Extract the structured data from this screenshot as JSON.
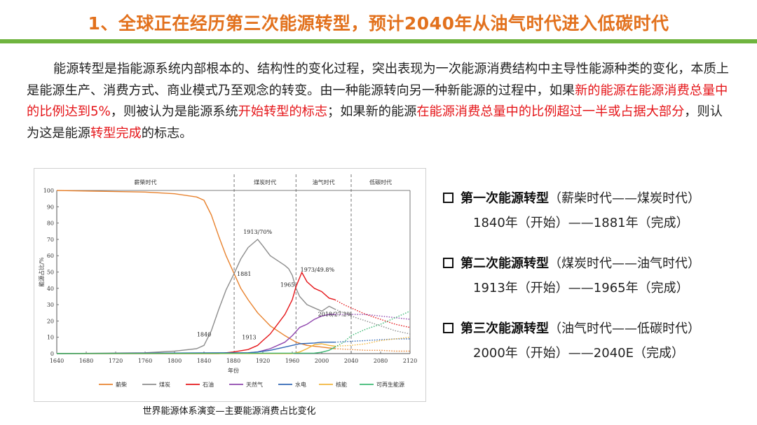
{
  "title": "1、全球正在经历第三次能源转型，预计2040年从油气时代进入低碳时代",
  "paragraph": {
    "p1": "能源转型是指能源系统内部根本的、结构性的变化过程，突出表现为一次能源消费结构中主导性能源种类的变化，本质上是能源生产、消费方式、商业模式乃至观念的转变。由一种能源转向另一种新能源的过程中，如果",
    "h1": "新的能源在能源消费总量中的比例达到5%",
    "p2": "，则被认为是能源系统",
    "h2": "开始转型的标志",
    "p3": "；如果新的能源",
    "h3": "在能源消费总量中的比例超过一半或占据大部分",
    "p4": "，则认为这是能源",
    "h4": "转型完成",
    "p5": "的标志。"
  },
  "caption": "世界能源体系演变—主要能源消费占比变化",
  "transitions": [
    {
      "label": "第一次能源转型",
      "detail": "（薪柴时代——煤炭时代）",
      "period": "1840年（开始）——1881年（完成）"
    },
    {
      "label": "第二次能源转型",
      "detail": "（煤炭时代——油气时代）",
      "period": "1913年（开始）——1965年（完成）"
    },
    {
      "label": "第三次能源转型",
      "detail": "（油气时代——低碳时代）",
      "period": "2000年（开始）——2040E（完成）"
    }
  ],
  "chart_data": {
    "type": "line",
    "ylabel": "能源占比/%",
    "xlabel": "年份",
    "xlim": [
      1640,
      2120
    ],
    "ylim": [
      0,
      100
    ],
    "xticks": [
      1640,
      1680,
      1720,
      1760,
      1800,
      1840,
      1880,
      1920,
      1960,
      2000,
      2040,
      2080,
      2120
    ],
    "yticks": [
      0,
      10,
      20,
      30,
      40,
      50,
      60,
      70,
      80,
      90,
      100
    ],
    "eras": [
      {
        "name": "薪柴时代",
        "start": 1640,
        "end": 1881
      },
      {
        "name": "煤炭时代",
        "start": 1881,
        "end": 1965
      },
      {
        "name": "油气时代",
        "start": 1965,
        "end": 2040
      },
      {
        "name": "低碳时代",
        "start": 2040,
        "end": 2120
      }
    ],
    "dividers": [
      1881,
      1965,
      2040
    ],
    "annotations": [
      {
        "text": "1913/70%",
        "x": 1913,
        "y": 70
      },
      {
        "text": "1881",
        "x": 1881,
        "y": 49
      },
      {
        "text": "1965",
        "x": 1965,
        "y": 41
      },
      {
        "text": "1973/49.8%",
        "x": 1973,
        "y": 49.8
      },
      {
        "text": "2018/27.2%",
        "x": 2018,
        "y": 27.2
      },
      {
        "text": "1840",
        "x": 1840,
        "y": 8
      },
      {
        "text": "1913",
        "x": 1913,
        "y": 7
      }
    ],
    "forecast_from": 2018,
    "series": [
      {
        "name": "薪柴",
        "color": "#e8822e",
        "x": [
          1640,
          1700,
          1760,
          1800,
          1830,
          1840,
          1850,
          1860,
          1870,
          1881,
          1890,
          1900,
          1913,
          1930,
          1950,
          1965,
          1980,
          2000,
          2018,
          2040,
          2060,
          2080,
          2100,
          2120
        ],
        "y": [
          100,
          99.5,
          99,
          98,
          96,
          94,
          85,
          72,
          60,
          49,
          40,
          33,
          25,
          17,
          11,
          7,
          5,
          4,
          3,
          2.5,
          2,
          2,
          1.5,
          1.5
        ]
      },
      {
        "name": "煤炭",
        "color": "#8d8d8d",
        "x": [
          1640,
          1760,
          1800,
          1830,
          1840,
          1850,
          1860,
          1870,
          1881,
          1890,
          1900,
          1913,
          1920,
          1930,
          1940,
          1950,
          1955,
          1960,
          1965,
          1970,
          1980,
          1990,
          2000,
          2010,
          2018,
          2030,
          2040,
          2060,
          2080,
          2100,
          2120
        ],
        "y": [
          0,
          0.5,
          1.5,
          3,
          5,
          14,
          27,
          39,
          49,
          58,
          65,
          70,
          66,
          60,
          57,
          54,
          52,
          48,
          40,
          35,
          30,
          28,
          26,
          29,
          27.2,
          25,
          23,
          20,
          17,
          14,
          12
        ]
      },
      {
        "name": "石油",
        "color": "#e5161a",
        "x": [
          1640,
          1860,
          1880,
          1900,
          1913,
          1920,
          1930,
          1940,
          1950,
          1960,
          1965,
          1973,
          1980,
          1990,
          2000,
          2010,
          2018,
          2030,
          2040,
          2060,
          2080,
          2100,
          2120
        ],
        "y": [
          0,
          0,
          1,
          2.5,
          5,
          8,
          12,
          18,
          24,
          33,
          41,
          49.8,
          44,
          40,
          38,
          34,
          33,
          30,
          28,
          24,
          21,
          18,
          16
        ]
      },
      {
        "name": "天然气",
        "color": "#8e44ad",
        "x": [
          1640,
          1900,
          1913,
          1930,
          1950,
          1960,
          1970,
          1980,
          1990,
          2000,
          2010,
          2018,
          2030,
          2040,
          2060,
          2080,
          2100,
          2120
        ],
        "y": [
          0,
          0.5,
          1,
          3,
          7,
          11,
          16,
          18,
          21,
          23,
          24,
          24,
          24,
          24,
          24,
          23,
          22,
          21
        ]
      },
      {
        "name": "水电",
        "color": "#2f66b5",
        "x": [
          1640,
          1900,
          1913,
          1930,
          1950,
          1960,
          1970,
          1990,
          2000,
          2018,
          2040,
          2060,
          2080,
          2100,
          2120
        ],
        "y": [
          0,
          0.5,
          1,
          2,
          4,
          5,
          6,
          6.5,
          7,
          7,
          7.5,
          8,
          8.5,
          9,
          9
        ]
      },
      {
        "name": "核能",
        "color": "#f2b53a",
        "x": [
          1640,
          1960,
          1970,
          1980,
          1990,
          2000,
          2010,
          2018,
          2040,
          2060,
          2080,
          2100,
          2120
        ],
        "y": [
          0,
          0,
          1,
          3,
          5.5,
          6,
          5,
          4.5,
          5,
          6,
          8,
          9,
          10
        ]
      },
      {
        "name": "可再生能源",
        "color": "#3cb873",
        "x": [
          1640,
          1990,
          2000,
          2010,
          2018,
          2030,
          2040,
          2060,
          2080,
          2100,
          2120
        ],
        "y": [
          0,
          0.3,
          0.8,
          2,
          4,
          7,
          11,
          15,
          18,
          22,
          26
        ]
      }
    ]
  }
}
